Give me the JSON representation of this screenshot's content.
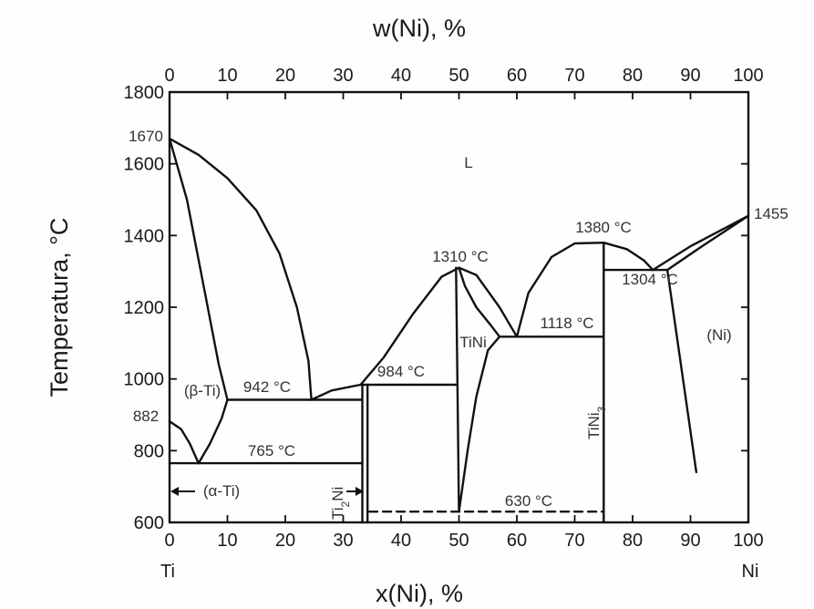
{
  "chart_data": {
    "type": "phase-diagram",
    "top_axis_title": "w(Ni), %",
    "bottom_axis_title": "x(Ni), %",
    "left_axis_title": "Temperatura, °C",
    "x_range": [
      0,
      100
    ],
    "y_range": [
      600,
      1800
    ],
    "bottom_ticks": [
      "0",
      "10",
      "20",
      "30",
      "40",
      "50",
      "60",
      "70",
      "80",
      "90",
      "100"
    ],
    "top_ticks": [
      "0",
      "10",
      "20",
      "30",
      "40",
      "50",
      "60",
      "70",
      "80",
      "90",
      "100"
    ],
    "left_ticks": [
      "600",
      "800",
      "1000",
      "1200",
      "1400",
      "1600",
      "1800"
    ],
    "endpoint_left": "Ti",
    "endpoint_right": "Ni",
    "labels": {
      "t_ti_melt": "1670",
      "t_ni_melt": "1455",
      "t_ti_transform": "882",
      "liquid": "L",
      "beta_ti": "(β-Ti)",
      "alpha_ti": "(α-Ti)",
      "eutectoid": "765 °C",
      "eutectic_942": "942 °C",
      "peritectic_984": "984 °C",
      "tini_melt": "1310 °C",
      "eutectic_1118": "1118 °C",
      "tini3_melt": "1380 °C",
      "eutectic_1304": "1304 °C",
      "martensite_630": "630 °C",
      "ni_phase": "(Ni)",
      "tini": "TiNi",
      "ti2ni_main": "Ti",
      "ti2ni_sub": "2",
      "ti2ni_end": "Ni",
      "tini3_main": "TiNi",
      "tini3_sub": "3"
    }
  }
}
